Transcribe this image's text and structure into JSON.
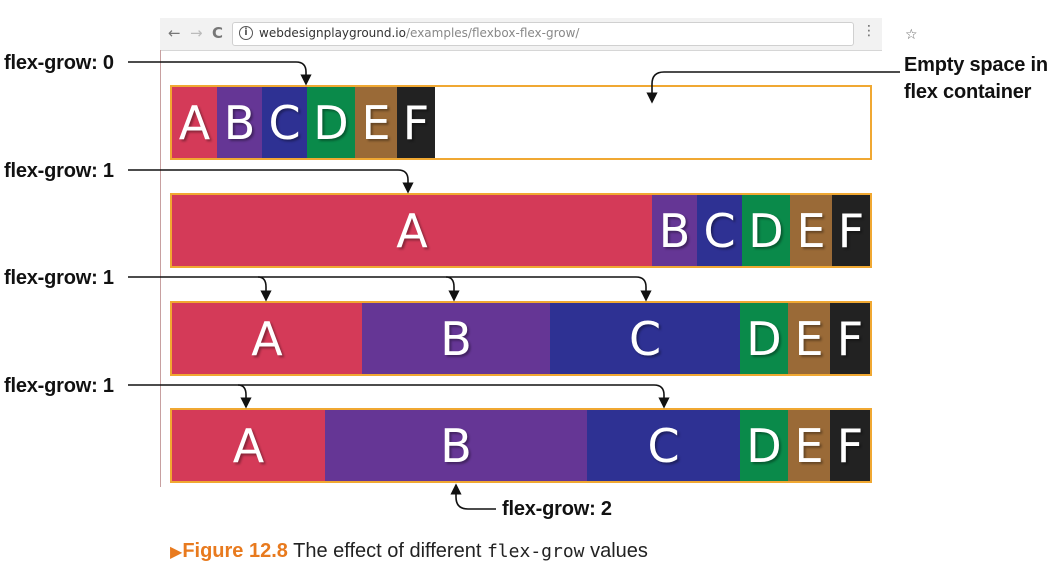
{
  "browser": {
    "back_icon": "←",
    "forward_icon": "→",
    "reload_icon": "C",
    "url_host": "webdesignplayground.io",
    "url_path": "/examples/flexbox-flex-grow/"
  },
  "rows": [
    {
      "items": [
        {
          "label": "A",
          "color": "#d43a58"
        },
        {
          "label": "B",
          "color": "#653695"
        },
        {
          "label": "C",
          "color": "#2e3193"
        },
        {
          "label": "D",
          "color": "#0a8a4a"
        },
        {
          "label": "E",
          "color": "#9a6a37"
        },
        {
          "label": "F",
          "color": "#222222"
        }
      ]
    },
    {
      "items": [
        {
          "label": "A",
          "color": "#d43a58"
        },
        {
          "label": "B",
          "color": "#653695"
        },
        {
          "label": "C",
          "color": "#2e3193"
        },
        {
          "label": "D",
          "color": "#0a8a4a"
        },
        {
          "label": "E",
          "color": "#9a6a37"
        },
        {
          "label": "F",
          "color": "#222222"
        }
      ]
    },
    {
      "items": [
        {
          "label": "A",
          "color": "#d43a58"
        },
        {
          "label": "B",
          "color": "#653695"
        },
        {
          "label": "C",
          "color": "#2e3193"
        },
        {
          "label": "D",
          "color": "#0a8a4a"
        },
        {
          "label": "E",
          "color": "#9a6a37"
        },
        {
          "label": "F",
          "color": "#222222"
        }
      ]
    },
    {
      "items": [
        {
          "label": "A",
          "color": "#d43a58"
        },
        {
          "label": "B",
          "color": "#653695"
        },
        {
          "label": "C",
          "color": "#2e3193"
        },
        {
          "label": "D",
          "color": "#0a8a4a"
        },
        {
          "label": "E",
          "color": "#9a6a37"
        },
        {
          "label": "F",
          "color": "#222222"
        }
      ]
    }
  ],
  "callouts": {
    "row1": "flex-grow: 0",
    "row2": "flex-grow: 1",
    "row3": "flex-grow: 1",
    "row4": "flex-grow: 1",
    "row4_b": "flex-grow: 2",
    "empty_space_line1": "Empty space in",
    "empty_space_line2": "flex container"
  },
  "caption": {
    "marker": "▶",
    "label": "Figure 12.8",
    "text_before": "The effect of different",
    "code": "flex-grow",
    "text_after": "values"
  },
  "colors": {
    "border": "#f0a832",
    "caption_accent": "#e87a1e"
  }
}
